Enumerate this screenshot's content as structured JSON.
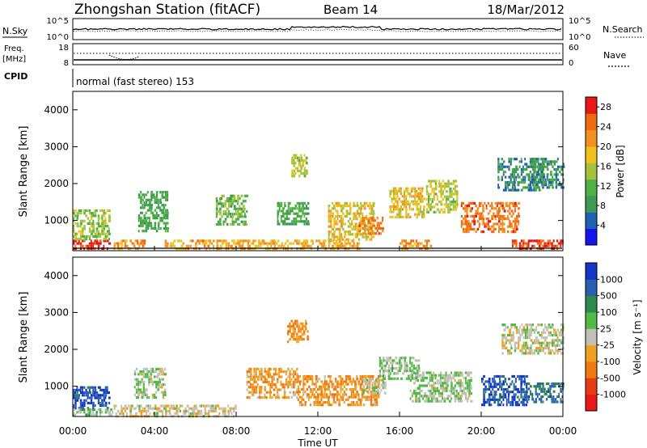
{
  "header": {
    "station": "Zhongshan Station (fitACF)",
    "beam": "Beam 14",
    "date": "18/Mar/2012"
  },
  "panels": {
    "nsky": {
      "label": "N.Sky",
      "ticks": [
        "10^5",
        "10^0"
      ]
    },
    "nsearch": {
      "label": "N.Search",
      "ticks": [
        "10^5",
        "10^0"
      ]
    },
    "freq": {
      "label_line1": "Freq.",
      "label_line2": "[MHz]",
      "ticks": [
        "18",
        "8"
      ]
    },
    "nave": {
      "label": "Nave",
      "ticks": [
        "60",
        "0"
      ]
    },
    "cpid": {
      "label": "CPID",
      "text": "normal (fast stereo) 153"
    }
  },
  "colors": {
    "power": [
      "#1515f0",
      "#1f5fb4",
      "#3e9a52",
      "#4fb043",
      "#a4c23a",
      "#f0c020",
      "#f39020",
      "#f06a10",
      "#e81818"
    ],
    "velocity": [
      "#1535c8",
      "#2a5fb0",
      "#2e8a4a",
      "#52b847",
      "#c0c0b4",
      "#f0a020",
      "#f07a10",
      "#e83a14",
      "#e81818"
    ]
  },
  "chart_data": [
    {
      "type": "heatmap",
      "title": "",
      "xlabel": "Time UT",
      "ylabel": "Slant Range [km]",
      "x_ticks": [
        "00:00",
        "04:00",
        "08:00",
        "12:00",
        "16:00",
        "20:00",
        "00:00"
      ],
      "y_ticks": [
        "1000",
        "2000",
        "3000",
        "4000"
      ],
      "xlim": [
        "00:00",
        "24:00"
      ],
      "ylim": [
        180,
        4500
      ],
      "colorbar": {
        "label": "Power [dB]",
        "ticks": [
          "4",
          "8",
          "12",
          "16",
          "20",
          "24",
          "28"
        ],
        "range": [
          0,
          30
        ]
      },
      "regions": [
        {
          "t": [
            0.0,
            1.8
          ],
          "r": [
            200,
            480
          ],
          "v": 28
        },
        {
          "t": [
            0.0,
            1.8
          ],
          "r": [
            480,
            1300
          ],
          "v": 14
        },
        {
          "t": [
            2.0,
            3.5
          ],
          "r": [
            200,
            480
          ],
          "v": 22
        },
        {
          "t": [
            3.2,
            4.6
          ],
          "r": [
            700,
            1800
          ],
          "v": 10
        },
        {
          "t": [
            4.5,
            7.5
          ],
          "r": [
            200,
            480
          ],
          "v": 21
        },
        {
          "t": [
            7.5,
            10.5
          ],
          "r": [
            200,
            480
          ],
          "v": 20
        },
        {
          "t": [
            7.0,
            8.5
          ],
          "r": [
            900,
            1700
          ],
          "v": 12
        },
        {
          "t": [
            10.0,
            11.5
          ],
          "r": [
            900,
            1500
          ],
          "v": 10
        },
        {
          "t": [
            10.7,
            11.4
          ],
          "r": [
            2200,
            2800
          ],
          "v": 16
        },
        {
          "t": [
            10.5,
            14.0
          ],
          "r": [
            200,
            480
          ],
          "v": 20
        },
        {
          "t": [
            12.5,
            14.7
          ],
          "r": [
            500,
            1500
          ],
          "v": 18
        },
        {
          "t": [
            14.0,
            15.2
          ],
          "r": [
            650,
            1100
          ],
          "v": 24
        },
        {
          "t": [
            15.5,
            17.2
          ],
          "r": [
            1100,
            1900
          ],
          "v": 18
        },
        {
          "t": [
            16.0,
            17.5
          ],
          "r": [
            200,
            480
          ],
          "v": 22
        },
        {
          "t": [
            17.3,
            18.8
          ],
          "r": [
            1200,
            2100
          ],
          "v": 16
        },
        {
          "t": [
            19.0,
            21.8
          ],
          "r": [
            700,
            1500
          ],
          "v": 24
        },
        {
          "t": [
            20.8,
            23.0
          ],
          "r": [
            1800,
            2700
          ],
          "v": 8
        },
        {
          "t": [
            21.5,
            24.0
          ],
          "r": [
            200,
            480
          ],
          "v": 27
        },
        {
          "t": [
            22.5,
            24.0
          ],
          "r": [
            1900,
            2700
          ],
          "v": 8
        }
      ]
    },
    {
      "type": "heatmap",
      "title": "",
      "xlabel": "Time UT",
      "ylabel": "Slant Range [km]",
      "x_ticks": [
        "00:00",
        "04:00",
        "08:00",
        "12:00",
        "16:00",
        "20:00",
        "00:00"
      ],
      "y_ticks": [
        "1000",
        "2000",
        "3000",
        "4000"
      ],
      "xlim": [
        "00:00",
        "24:00"
      ],
      "ylim": [
        180,
        4500
      ],
      "colorbar": {
        "label": "Velocity [m s⁻¹]",
        "ticks": [
          "1000",
          "500",
          "100",
          "25",
          "-25",
          "-100",
          "-500",
          "-1000"
        ],
        "range": [
          -1200,
          1200
        ]
      },
      "regions": [
        {
          "t": [
            0.0,
            1.8
          ],
          "r": [
            400,
            1000
          ],
          "v": 900
        },
        {
          "t": [
            0.0,
            2.0
          ],
          "r": [
            200,
            400
          ],
          "v": 200
        },
        {
          "t": [
            2.0,
            8.0
          ],
          "r": [
            200,
            500
          ],
          "v": -80
        },
        {
          "t": [
            3.0,
            4.5
          ],
          "r": [
            700,
            1500
          ],
          "v": 80
        },
        {
          "t": [
            8.5,
            11.0
          ],
          "r": [
            700,
            1500
          ],
          "v": -300
        },
        {
          "t": [
            10.5,
            11.5
          ],
          "r": [
            2200,
            2800
          ],
          "v": -400
        },
        {
          "t": [
            11.0,
            15.0
          ],
          "r": [
            500,
            1300
          ],
          "v": -350
        },
        {
          "t": [
            14.2,
            15.3
          ],
          "r": [
            800,
            1200
          ],
          "v": 80
        },
        {
          "t": [
            15.0,
            17.0
          ],
          "r": [
            1200,
            1800
          ],
          "v": 150
        },
        {
          "t": [
            16.5,
            19.5
          ],
          "r": [
            600,
            1400
          ],
          "v": 120
        },
        {
          "t": [
            20.0,
            22.2
          ],
          "r": [
            500,
            1300
          ],
          "v": 900
        },
        {
          "t": [
            21.0,
            24.0
          ],
          "r": [
            1900,
            2700
          ],
          "v": 0
        },
        {
          "t": [
            22.2,
            24.0
          ],
          "r": [
            600,
            1100
          ],
          "v": 700
        }
      ]
    }
  ]
}
